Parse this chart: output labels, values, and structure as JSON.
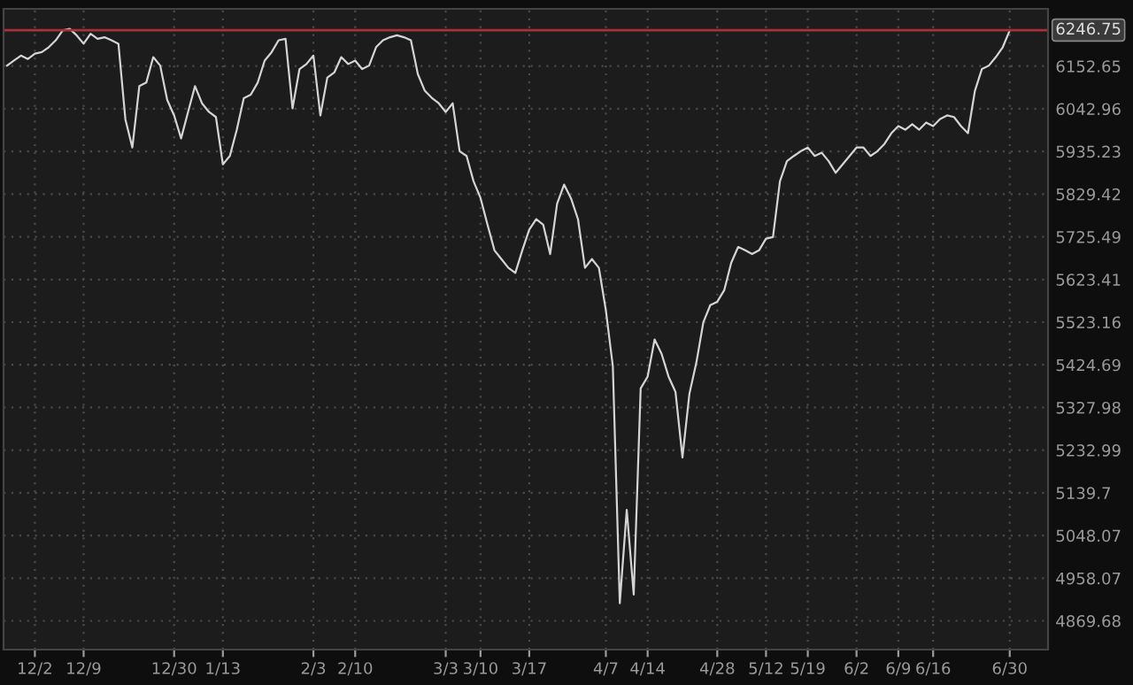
{
  "chart_data": {
    "type": "line",
    "categories": [
      null,
      null,
      null,
      null,
      "12/2",
      null,
      null,
      null,
      null,
      null,
      null,
      "12/9",
      null,
      null,
      null,
      null,
      null,
      null,
      null,
      null,
      null,
      null,
      null,
      null,
      "12/30",
      null,
      null,
      null,
      null,
      null,
      null,
      "1/13",
      null,
      null,
      null,
      null,
      null,
      null,
      null,
      null,
      null,
      null,
      null,
      null,
      "2/3",
      null,
      null,
      null,
      null,
      null,
      "2/10",
      null,
      null,
      null,
      null,
      null,
      null,
      null,
      null,
      null,
      null,
      null,
      null,
      "3/3",
      null,
      null,
      null,
      null,
      "3/10",
      null,
      null,
      null,
      null,
      null,
      null,
      "3/17",
      null,
      null,
      null,
      null,
      null,
      null,
      null,
      null,
      null,
      null,
      "4/7",
      null,
      null,
      null,
      null,
      null,
      "4/14",
      null,
      null,
      null,
      null,
      null,
      null,
      null,
      null,
      null,
      "4/28",
      null,
      null,
      null,
      null,
      null,
      null,
      "5/12",
      null,
      null,
      null,
      null,
      null,
      "5/19",
      null,
      null,
      null,
      null,
      null,
      null,
      "6/2",
      null,
      null,
      null,
      null,
      null,
      "6/9",
      null,
      null,
      null,
      null,
      "6/16",
      null,
      null,
      null,
      null,
      null,
      null,
      null,
      null,
      null,
      null,
      "6/30"
    ],
    "series": [
      {
        "color": "#d4d4d4",
        "values": [
          6154,
          6167,
          6180,
          6171,
          6185,
          6189,
          6202,
          6220,
          6246,
          6250,
          6233,
          6211,
          6237,
          6224,
          6228,
          6220,
          6211,
          6016,
          5945,
          6101,
          6110,
          6176,
          6154,
          6066,
          6026,
          5968,
          6035,
          6101,
          6057,
          6035,
          6022,
          5903,
          5924,
          5990,
          6070,
          6079,
          6110,
          6167,
          6189,
          6220,
          6224,
          6044,
          6145,
          6158,
          6180,
          6026,
          6123,
          6136,
          6176,
          6158,
          6167,
          6145,
          6154,
          6202,
          6220,
          6228,
          6233,
          6228,
          6220,
          6132,
          6089,
          6071,
          6057,
          6035,
          6057,
          5936,
          5924,
          5861,
          5820,
          5755,
          5693,
          5672,
          5651,
          5639,
          5693,
          5743,
          5768,
          5755,
          5684,
          5806,
          5853,
          5819,
          5768,
          5651,
          5672,
          5651,
          5551,
          5422,
          4906,
          5103,
          4924,
          5371,
          5398,
          5483,
          5450,
          5398,
          5363,
          5217,
          5359,
          5430,
          5523,
          5563,
          5571,
          5598,
          5663,
          5701,
          5693,
          5684,
          5693,
          5721,
          5725,
          5861,
          5911,
          5924,
          5936,
          5945,
          5924,
          5932,
          5911,
          5882,
          5903,
          5924,
          5945,
          5945,
          5924,
          5936,
          5954,
          5981,
          5999,
          5990,
          6004,
          5990,
          6008,
          5999,
          6017,
          6026,
          6022,
          5999,
          5981,
          6089,
          6145,
          6154,
          6176,
          6202,
          6246
        ]
      }
    ],
    "log": true,
    "ylim": [
      4811,
      6303
    ],
    "yticks": [
      4869.68,
      4958.07,
      5048.07,
      5139.7,
      5232.99,
      5327.98,
      5424.69,
      5523.16,
      5623.41,
      5725.49,
      5829.42,
      5935.23,
      6042.96,
      6152.65
    ],
    "ref_lines": [
      {
        "axis": "y",
        "value": 6246.75,
        "label": "6246.75",
        "color": "#a8323a"
      }
    ],
    "grid": true,
    "line_style": "solid",
    "marker": "none"
  }
}
